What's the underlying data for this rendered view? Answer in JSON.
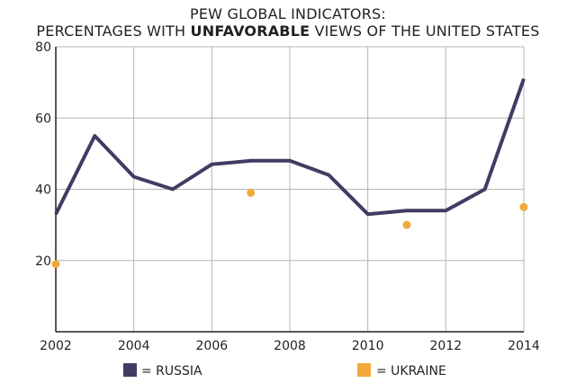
{
  "chart_data": {
    "type": "line",
    "title_line1": "PEW GLOBAL INDICATORS:",
    "title_line2_prefix": "PERCENTAGES WITH ",
    "title_line2_bold": "UNFAVORABLE",
    "title_line2_suffix": " VIEWS OF THE UNITED STATES",
    "xlim": [
      2002,
      2014
    ],
    "ylim": [
      0,
      80
    ],
    "x_ticks": [
      2002,
      2004,
      2006,
      2008,
      2010,
      2012,
      2014
    ],
    "y_ticks": [
      20,
      40,
      60,
      80
    ],
    "x_grid_step": 2,
    "grid": true,
    "series": [
      {
        "name": "RUSSIA",
        "style": "line",
        "color": "#3f3d63",
        "points": [
          [
            2002,
            33
          ],
          [
            2003,
            55
          ],
          [
            2004,
            43.5
          ],
          [
            2005,
            40
          ],
          [
            2006,
            47
          ],
          [
            2007,
            48
          ],
          [
            2008,
            48
          ],
          [
            2009,
            44
          ],
          [
            2010,
            33
          ],
          [
            2011,
            34
          ],
          [
            2012,
            34
          ],
          [
            2013,
            40
          ],
          [
            2014,
            71
          ]
        ]
      },
      {
        "name": "UKRAINE",
        "style": "points",
        "color": "#f2a93b",
        "points": [
          [
            2002,
            19
          ],
          [
            2007,
            39
          ],
          [
            2011,
            30
          ],
          [
            2014,
            35
          ]
        ]
      }
    ],
    "legend": [
      {
        "label": "= RUSSIA",
        "color": "#3f3d63"
      },
      {
        "label": "= UKRAINE",
        "color": "#f2a93b"
      }
    ]
  }
}
